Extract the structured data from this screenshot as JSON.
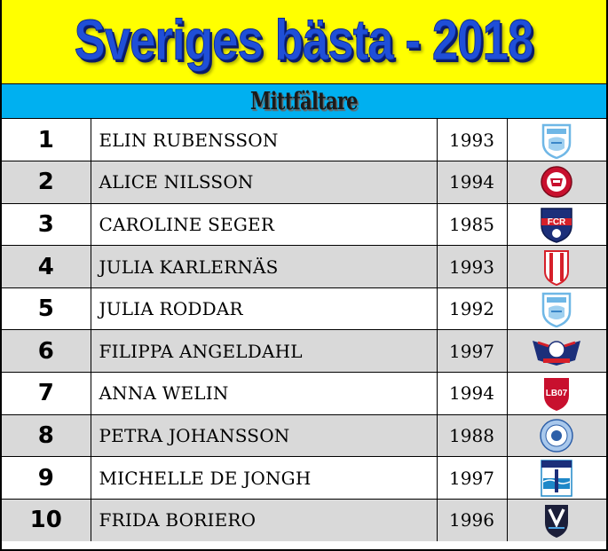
{
  "title": "Sveriges bästa - 2018",
  "section": "Mittfältare",
  "colors": {
    "header_bg": "#ffff00",
    "title": "#1f4fd8",
    "section_bg": "#00b0f0",
    "alt_row": "#d9d9d9"
  },
  "rows": [
    {
      "rank": "1",
      "name": "ELIN RUBENSSON",
      "year": "1993",
      "club_icon": "club-crest-light-blue-icon"
    },
    {
      "rank": "2",
      "name": "ALICE NILSSON",
      "year": "1994",
      "club_icon": "club-crest-red-round-icon"
    },
    {
      "rank": "3",
      "name": "CAROLINE SEGER",
      "year": "1985",
      "club_icon": "club-crest-fcr-icon"
    },
    {
      "rank": "4",
      "name": "JULIA KARLERNÄS",
      "year": "1993",
      "club_icon": "club-crest-red-stripes-icon"
    },
    {
      "rank": "5",
      "name": "JULIA RODDAR",
      "year": "1992",
      "club_icon": "club-crest-light-blue-icon"
    },
    {
      "rank": "6",
      "name": "FILIPPA ANGELDAHL",
      "year": "1997",
      "club_icon": "club-crest-linkoping-icon"
    },
    {
      "rank": "7",
      "name": "ANNA WELIN",
      "year": "1994",
      "club_icon": "club-crest-lb07-icon"
    },
    {
      "rank": "8",
      "name": "PETRA JOHANSSON",
      "year": "1988",
      "club_icon": "club-crest-blue-round-icon"
    },
    {
      "rank": "9",
      "name": "MICHELLE DE JONGH",
      "year": "1997",
      "club_icon": "club-crest-vgik-icon"
    },
    {
      "rank": "10",
      "name": "FRIDA BORIERO",
      "year": "1996",
      "club_icon": "club-crest-vaxjo-icon"
    }
  ]
}
